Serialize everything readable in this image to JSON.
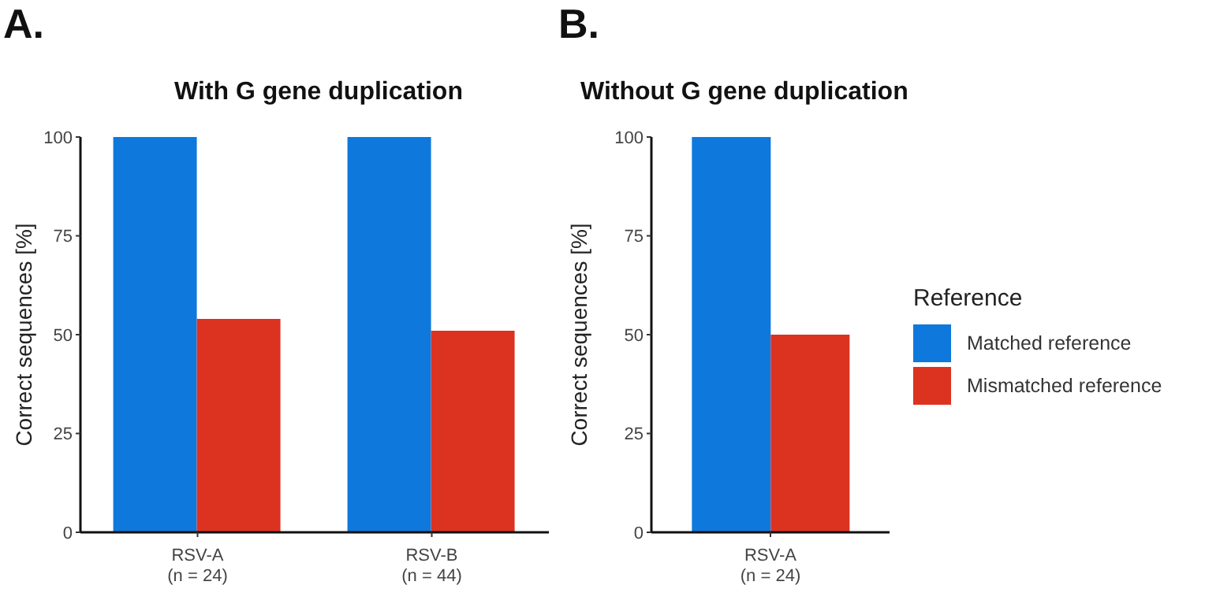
{
  "chart_data": [
    {
      "type": "bar",
      "title": "With G gene duplication",
      "ylabel": "Correct sequences [%]",
      "annotations": [
        "A."
      ],
      "categories": [
        "RSV-A\n(n = 24)",
        "RSV-B\n(n = 44)"
      ],
      "series": [
        {
          "color": "#0f78dc",
          "values": [
            100,
            100
          ]
        },
        {
          "color": "#dc3220",
          "values": [
            54,
            51
          ]
        }
      ],
      "ylim": [
        0,
        100
      ],
      "yticks": [
        0,
        25,
        50,
        75,
        100
      ],
      "grid": false,
      "legend": false
    },
    {
      "type": "bar",
      "title": "Without G gene duplication",
      "ylabel": "Correct sequences [%]",
      "annotations": [
        "B."
      ],
      "legend_title": "Reference",
      "categories": [
        "RSV-A\n(n = 24)"
      ],
      "series": [
        {
          "name": "Matched reference",
          "color": "#0f78dc",
          "values": [
            100
          ]
        },
        {
          "name": "Mismatched reference",
          "color": "#dc3220",
          "values": [
            50
          ]
        }
      ],
      "ylim": [
        0,
        100
      ],
      "yticks": [
        0,
        25,
        50,
        75,
        100
      ],
      "grid": false,
      "legend": "right"
    }
  ]
}
